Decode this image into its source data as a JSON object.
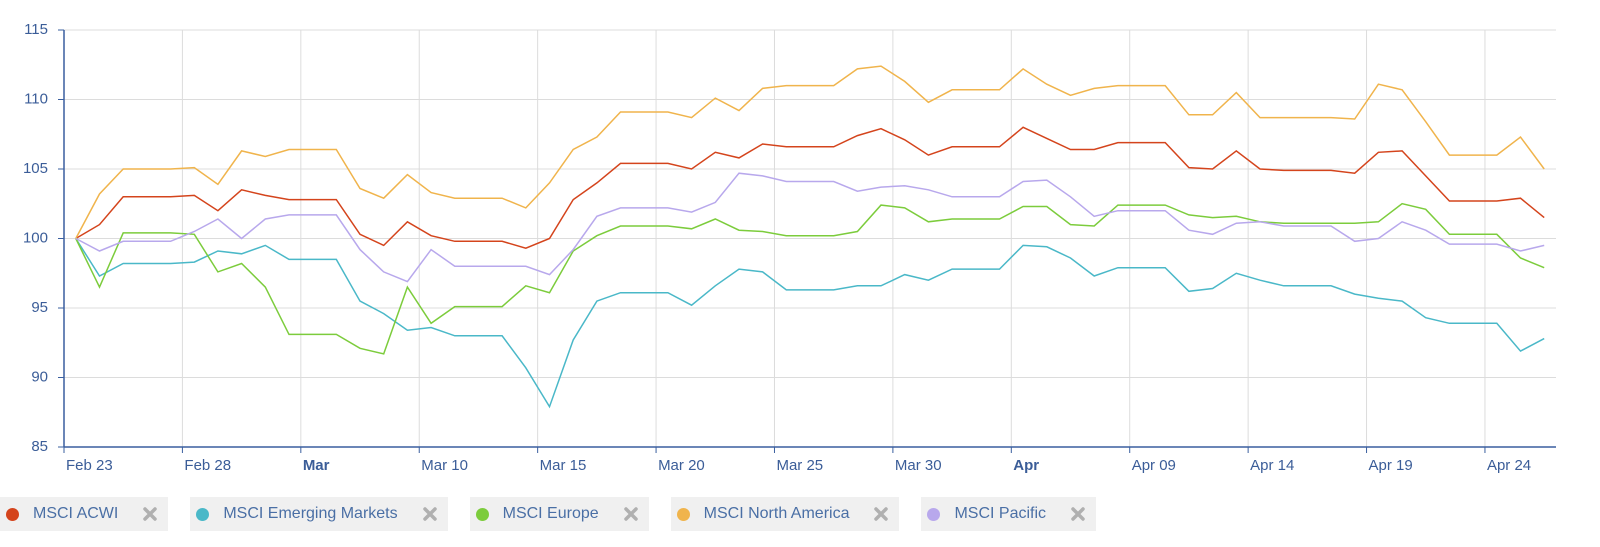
{
  "chart_data": {
    "type": "line",
    "categories": [
      "Feb 23",
      null,
      null,
      null,
      null,
      "Feb 28",
      null,
      null,
      null,
      null,
      "Mar",
      null,
      null,
      null,
      null,
      "Mar 10",
      null,
      null,
      null,
      null,
      "Mar 15",
      null,
      null,
      null,
      null,
      "Mar 20",
      null,
      null,
      null,
      null,
      "Mar 25",
      null,
      null,
      null,
      null,
      "Mar 30",
      null,
      null,
      null,
      null,
      "Apr",
      null,
      null,
      null,
      null,
      "Apr 09",
      null,
      null,
      null,
      null,
      "Apr 14",
      null,
      null,
      null,
      null,
      "Apr 19",
      null,
      null,
      null,
      null,
      "Apr 24",
      null,
      null
    ],
    "series": [
      {
        "name": "MSCI ACWI",
        "color": "#d4441c",
        "values": [
          100,
          101,
          103,
          103,
          103,
          103.1,
          102,
          103.5,
          103.1,
          102.8,
          102.8,
          102.8,
          100.3,
          99.5,
          101.2,
          100.2,
          99.8,
          99.8,
          99.8,
          99.3,
          100,
          102.8,
          104,
          105.4,
          105.4,
          105.4,
          105,
          106.2,
          105.8,
          106.8,
          106.6,
          106.6,
          106.6,
          107.4,
          107.9,
          107.1,
          106,
          106.6,
          106.6,
          106.6,
          108,
          107.2,
          106.4,
          106.4,
          106.9,
          106.9,
          106.9,
          105.1,
          105,
          106.3,
          105,
          104.9,
          104.9,
          104.9,
          104.7,
          106.2,
          106.3,
          104.5,
          102.7,
          102.7,
          102.7,
          102.9,
          101.5
        ]
      },
      {
        "name": "MSCI Emerging Markets",
        "color": "#4ab8c8",
        "values": [
          100,
          97.3,
          98.2,
          98.2,
          98.2,
          98.3,
          99.1,
          98.9,
          99.5,
          98.5,
          98.5,
          98.5,
          95.5,
          94.6,
          93.4,
          93.6,
          93.0,
          93.0,
          93.0,
          90.7,
          87.9,
          92.7,
          95.5,
          96.1,
          96.1,
          96.1,
          95.2,
          96.6,
          97.8,
          97.6,
          96.3,
          96.3,
          96.3,
          96.6,
          96.6,
          97.4,
          97.0,
          97.8,
          97.8,
          97.8,
          99.5,
          99.4,
          98.6,
          97.3,
          97.9,
          97.9,
          97.9,
          96.2,
          96.4,
          97.5,
          97.0,
          96.6,
          96.6,
          96.6,
          96.0,
          95.7,
          95.5,
          94.3,
          93.9,
          93.9,
          93.9,
          91.9,
          92.8
        ]
      },
      {
        "name": "MSCI Europe",
        "color": "#7ccc3c",
        "values": [
          100,
          96.5,
          100.4,
          100.4,
          100.4,
          100.3,
          97.6,
          98.2,
          96.5,
          93.1,
          93.1,
          93.1,
          92.1,
          91.7,
          96.5,
          93.9,
          95.1,
          95.1,
          95.1,
          96.6,
          96.1,
          99.1,
          100.2,
          100.9,
          100.9,
          100.9,
          100.7,
          101.4,
          100.6,
          100.5,
          100.2,
          100.2,
          100.2,
          100.5,
          102.4,
          102.2,
          101.2,
          101.4,
          101.4,
          101.4,
          102.3,
          102.3,
          101.0,
          100.9,
          102.4,
          102.4,
          102.4,
          101.7,
          101.5,
          101.6,
          101.2,
          101.1,
          101.1,
          101.1,
          101.1,
          101.2,
          102.5,
          102.1,
          100.3,
          100.3,
          100.3,
          98.6,
          97.9
        ]
      },
      {
        "name": "MSCI North America",
        "color": "#f0b44c",
        "values": [
          100,
          103.2,
          105,
          105,
          105,
          105.1,
          103.9,
          106.3,
          105.9,
          106.4,
          106.4,
          106.4,
          103.6,
          102.9,
          104.6,
          103.3,
          102.9,
          102.9,
          102.9,
          102.2,
          104,
          106.4,
          107.3,
          109.1,
          109.1,
          109.1,
          108.7,
          110.1,
          109.2,
          110.8,
          111,
          111,
          111,
          112.2,
          112.4,
          111.3,
          109.8,
          110.7,
          110.7,
          110.7,
          112.2,
          111.1,
          110.3,
          110.8,
          111,
          111,
          111,
          108.9,
          108.9,
          110.5,
          108.7,
          108.7,
          108.7,
          108.7,
          108.6,
          111.1,
          110.7,
          108.4,
          106,
          106,
          106,
          107.3,
          105
        ]
      },
      {
        "name": "MSCI Pacific",
        "color": "#b8a8ec",
        "values": [
          100,
          99.1,
          99.8,
          99.8,
          99.8,
          100.5,
          101.4,
          100,
          101.4,
          101.7,
          101.7,
          101.7,
          99.2,
          97.6,
          96.9,
          99.2,
          98,
          98,
          98,
          98,
          97.4,
          99.2,
          101.6,
          102.2,
          102.2,
          102.2,
          101.9,
          102.6,
          104.7,
          104.5,
          104.1,
          104.1,
          104.1,
          103.4,
          103.7,
          103.8,
          103.5,
          103,
          103,
          103,
          104.1,
          104.2,
          103,
          101.6,
          102,
          102,
          102,
          100.6,
          100.3,
          101.1,
          101.2,
          100.9,
          100.9,
          100.9,
          99.8,
          100,
          101.2,
          100.6,
          99.6,
          99.6,
          99.6,
          99.1,
          99.5
        ]
      }
    ],
    "ylim": [
      85,
      115
    ],
    "yticks": [
      85,
      90,
      95,
      100,
      105,
      110,
      115
    ],
    "grid": true,
    "legend": "bottom"
  }
}
